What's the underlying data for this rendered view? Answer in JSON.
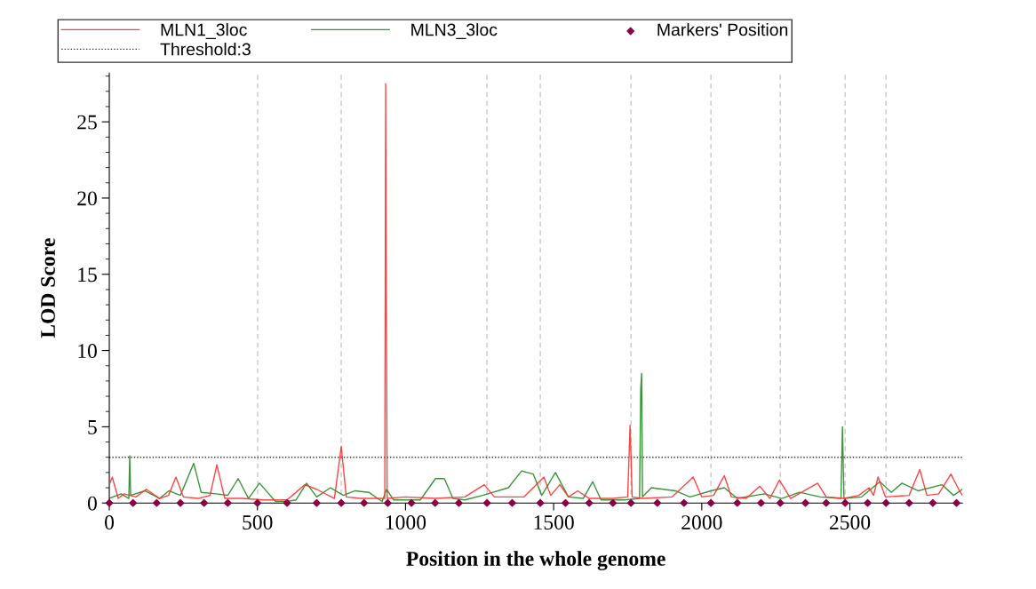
{
  "chart_data": {
    "type": "line",
    "xlabel": "Position in the whole genome",
    "ylabel": "LOD Score",
    "xlim": [
      0,
      2880
    ],
    "xticks": [
      0,
      500,
      1000,
      1500,
      2000,
      2500
    ],
    "ylim": [
      0,
      28.2
    ],
    "yticks": [
      0,
      {
        "value": 1,
        "label": null
      },
      {
        "value": 2,
        "label": null
      },
      {
        "value": 3,
        "label": null
      },
      {
        "value": 4,
        "label": null
      },
      5,
      {
        "value": 6,
        "label": null
      },
      {
        "value": 7,
        "label": null
      },
      {
        "value": 8,
        "label": null
      },
      {
        "value": 9,
        "label": null
      },
      10,
      {
        "value": 11,
        "label": null
      },
      {
        "value": 12,
        "label": null
      },
      {
        "value": 13,
        "label": null
      },
      {
        "value": 14,
        "label": null
      },
      15,
      {
        "value": 16,
        "label": null
      },
      {
        "value": 17,
        "label": null
      },
      {
        "value": 18,
        "label": null
      },
      {
        "value": 19,
        "label": null
      },
      20,
      {
        "value": 21,
        "label": null
      },
      {
        "value": 22,
        "label": null
      },
      {
        "value": 23,
        "label": null
      },
      {
        "value": 24,
        "label": null
      },
      25,
      {
        "value": 26,
        "label": null
      },
      {
        "value": 27,
        "label": null
      },
      {
        "value": 28,
        "label": null
      }
    ],
    "legend": "top",
    "grid": false,
    "series": [
      {
        "name": "MLN1_3loc",
        "color": "#ff3030",
        "x": [
          0,
          10,
          30,
          50,
          90,
          125,
          170,
          200,
          225,
          250,
          300,
          340,
          363,
          390,
          450,
          520,
          600,
          660,
          700,
          760,
          783,
          800,
          850,
          900,
          930,
          933,
          935,
          938,
          1000,
          1100,
          1200,
          1266,
          1300,
          1400,
          1467,
          1490,
          1521,
          1550,
          1581,
          1620,
          1700,
          1750,
          1758,
          1765,
          1800,
          1900,
          1971,
          2000,
          2040,
          2076,
          2100,
          2150,
          2196,
          2230,
          2262,
          2300,
          2391,
          2420,
          2480,
          2530,
          2565,
          2580,
          2595,
          2620,
          2700,
          2736,
          2760,
          2800,
          2841,
          2870,
          2880
        ],
        "values": [
          1.2,
          1.7,
          0.3,
          0.6,
          0.4,
          0.9,
          0.3,
          0.5,
          1.7,
          0.4,
          0.3,
          0.5,
          2.5,
          0.3,
          0.3,
          0.2,
          0.2,
          1.2,
          0.9,
          0.3,
          3.7,
          0.4,
          0.3,
          0.3,
          0.3,
          27.5,
          13.8,
          0.3,
          0.4,
          0.3,
          0.4,
          1.2,
          0.4,
          0.4,
          1.7,
          0.5,
          1.2,
          0.4,
          0.8,
          0.3,
          0.3,
          0.4,
          5.1,
          0.4,
          0.3,
          0.4,
          1.7,
          0.4,
          0.5,
          1.8,
          0.4,
          0.3,
          1.1,
          0.3,
          1.5,
          0.3,
          1.3,
          0.4,
          0.3,
          0.5,
          1.0,
          0.5,
          1.7,
          0.4,
          0.5,
          2.2,
          0.5,
          0.6,
          1.9,
          0.8,
          0.5
        ]
      },
      {
        "name": "MLN3_3loc",
        "color": "#228b22",
        "x": [
          0,
          40,
          66,
          69,
          72,
          120,
          170,
          201,
          240,
          285,
          310,
          360,
          400,
          435,
          470,
          507,
          561,
          600,
          630,
          666,
          700,
          747,
          790,
          830,
          876,
          921,
          936,
          960,
          1050,
          1101,
          1131,
          1160,
          1200,
          1260,
          1347,
          1392,
          1431,
          1460,
          1506,
          1550,
          1600,
          1632,
          1660,
          1740,
          1790,
          1794,
          1797,
          1800,
          1830,
          1911,
          1960,
          2031,
          2076,
          2120,
          2211,
          2270,
          2330,
          2400,
          2470,
          2475,
          2480,
          2540,
          2601,
          2640,
          2676,
          2730,
          2811,
          2850,
          2880
        ],
        "values": [
          0.3,
          0.6,
          0.3,
          3.1,
          0.5,
          0.8,
          0.3,
          0.8,
          0.5,
          2.6,
          0.7,
          0.6,
          0.5,
          1.6,
          0.3,
          1.3,
          0.1,
          0.1,
          0.2,
          1.3,
          0.4,
          1.0,
          0.5,
          0.8,
          0.7,
          0.1,
          0.9,
          0.2,
          0.2,
          1.6,
          1.6,
          0.3,
          0.2,
          0.5,
          1.0,
          2.1,
          1.9,
          0.5,
          2.0,
          0.4,
          0.3,
          1.4,
          0.2,
          0.2,
          0.3,
          7.5,
          8.5,
          0.4,
          1.0,
          0.8,
          0.4,
          0.8,
          1.0,
          0.3,
          0.6,
          0.3,
          0.7,
          0.4,
          0.3,
          5.0,
          0.3,
          0.4,
          1.4,
          0.7,
          1.3,
          0.8,
          1.2,
          0.5,
          0.9
        ]
      },
      {
        "name": "Markers' Position",
        "type": "scatter",
        "color": "#8b0045",
        "marker": "diamond",
        "x": [
          0,
          80,
          160,
          240,
          320,
          400,
          500,
          600,
          700,
          783,
          860,
          940,
          1020,
          1100,
          1180,
          1275,
          1360,
          1455,
          1540,
          1620,
          1700,
          1761,
          1850,
          1940,
          2031,
          2120,
          2200,
          2265,
          2350,
          2420,
          2484,
          2560,
          2622,
          2700,
          2780,
          2860
        ],
        "values": [
          0,
          0,
          0,
          0,
          0,
          0,
          0,
          0,
          0,
          0,
          0,
          0,
          0,
          0,
          0,
          0,
          0,
          0,
          0,
          0,
          0,
          0,
          0,
          0,
          0,
          0,
          0,
          0,
          0,
          0,
          0,
          0,
          0,
          0,
          0,
          0
        ]
      }
    ],
    "ref_lines": [
      {
        "axis": "y",
        "value": 3,
        "label": "Threshold:3",
        "color": "#333333",
        "line_style": "dotted"
      },
      {
        "axis": "x",
        "value": 501,
        "color": "#c8c8c8",
        "line_style": "dashed"
      },
      {
        "axis": "x",
        "value": 783,
        "color": "#c8c8c8",
        "line_style": "dashed"
      },
      {
        "axis": "x",
        "value": 1275,
        "color": "#c8c8c8",
        "line_style": "dashed"
      },
      {
        "axis": "x",
        "value": 1455,
        "color": "#c8c8c8",
        "line_style": "dashed"
      },
      {
        "axis": "x",
        "value": 1761,
        "color": "#c8c8c8",
        "line_style": "dashed"
      },
      {
        "axis": "x",
        "value": 2031,
        "color": "#c8c8c8",
        "line_style": "dashed"
      },
      {
        "axis": "x",
        "value": 2265,
        "color": "#c8c8c8",
        "line_style": "dashed"
      },
      {
        "axis": "x",
        "value": 2484,
        "color": "#c8c8c8",
        "line_style": "dashed"
      },
      {
        "axis": "x",
        "value": 2622,
        "color": "#c8c8c8",
        "line_style": "dashed"
      }
    ]
  }
}
